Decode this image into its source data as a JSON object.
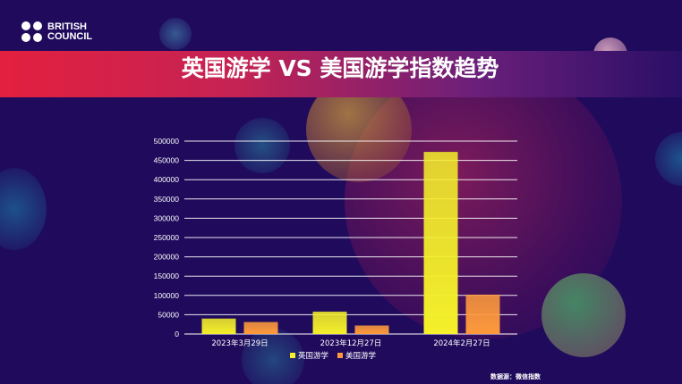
{
  "brand": {
    "line1": "BRITISH",
    "line2": "COUNCIL"
  },
  "slide_title": "英国游学 VS 美国游学指数趋势",
  "source_note": "数据源：微信指数",
  "colors": {
    "background": "#1f0a5c",
    "uk_series": "#f5f02a",
    "us_series": "#ff9a3c",
    "grid": "#ffffff"
  },
  "chart_data": {
    "type": "bar",
    "categories": [
      "2023年3月29日",
      "2023年12月27日",
      "2024年2月27日"
    ],
    "series": [
      {
        "name": "英国游学",
        "values": [
          40000,
          58000,
          472000
        ],
        "color": "#f5f02a"
      },
      {
        "name": "美国游学",
        "values": [
          31000,
          22000,
          102000
        ],
        "color": "#ff9a3c"
      }
    ],
    "ylim": [
      0,
      500000
    ],
    "yticks": [
      0,
      50000,
      100000,
      150000,
      200000,
      250000,
      300000,
      350000,
      400000,
      450000,
      500000
    ],
    "grid": true,
    "legend": "bottom"
  }
}
